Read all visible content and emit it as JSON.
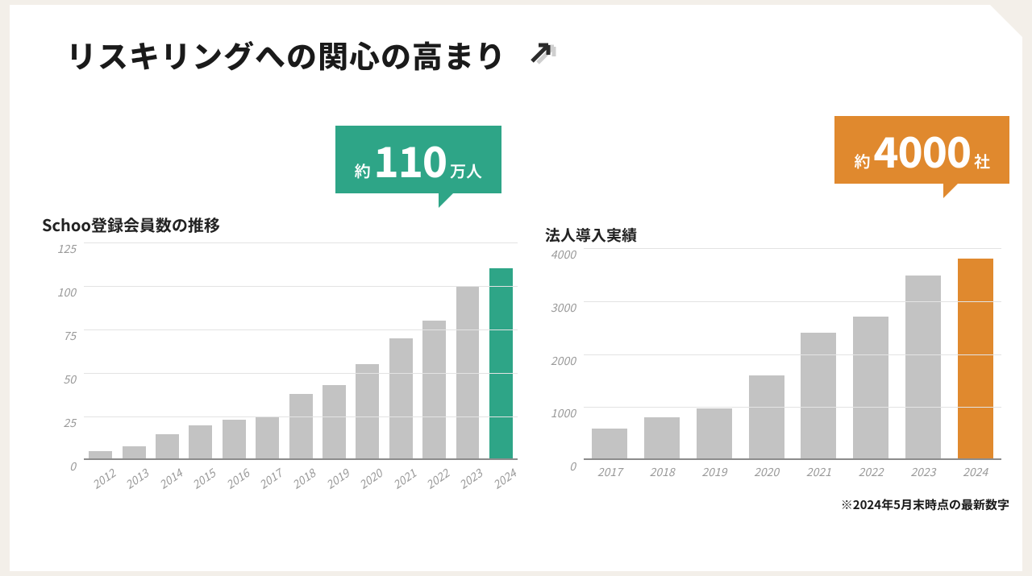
{
  "page": {
    "bg_outer": "#f3efe9",
    "bg_slide": "#ffffff"
  },
  "title": "リスキリングへの関心の高まり",
  "title_fontsize": 38,
  "title_color": "#1a1a1a",
  "arrow_icon": {
    "fg": "#2b2b2b",
    "shadow": "#cfcfcf"
  },
  "chart_left": {
    "type": "bar",
    "title": "Schoo登録会員数の推移",
    "title_fontsize": 20,
    "callout": {
      "prefix": "約",
      "value": "110",
      "suffix": "万人",
      "bg": "#2ea587",
      "text_color": "#ffffff",
      "value_fontsize": 52,
      "affix_fontsize": 20
    },
    "categories": [
      "2012",
      "2013",
      "2014",
      "2015",
      "2016",
      "2017",
      "2018",
      "2019",
      "2020",
      "2021",
      "2022",
      "2023",
      "2024"
    ],
    "values": [
      5,
      8,
      15,
      20,
      23,
      25,
      38,
      43,
      55,
      70,
      80,
      100,
      110
    ],
    "bar_color_default": "#c3c3c3",
    "bar_color_highlight": "#2ea587",
    "highlight_index": 12,
    "ylim": [
      0,
      125
    ],
    "yticks": [
      0,
      25,
      50,
      75,
      100,
      125
    ],
    "axis_label_color": "#9a9a9a",
    "axis_label_fontsize": 14,
    "grid_color": "#e3e3e3",
    "baseline_color": "#8c8c8c",
    "x_label_rotation_deg": -35,
    "bar_width_ratio": 0.7,
    "background_color": "#ffffff"
  },
  "chart_right": {
    "type": "bar",
    "title": "法人導入実績",
    "title_fontsize": 19,
    "callout": {
      "prefix": "約",
      "value": "4000",
      "suffix": "社",
      "bg": "#e0892e",
      "text_color": "#ffffff",
      "value_fontsize": 52,
      "affix_fontsize": 20
    },
    "categories": [
      "2017",
      "2018",
      "2019",
      "2020",
      "2021",
      "2022",
      "2023",
      "2024"
    ],
    "values": [
      600,
      800,
      980,
      1600,
      2400,
      2700,
      3480,
      3800
    ],
    "bar_color_default": "#c3c3c3",
    "bar_color_highlight": "#e0892e",
    "highlight_index": 7,
    "ylim": [
      0,
      4000
    ],
    "yticks": [
      0,
      1000,
      2000,
      3000,
      4000
    ],
    "axis_label_color": "#9a9a9a",
    "axis_label_fontsize": 14,
    "grid_color": "#e3e3e3",
    "baseline_color": "#8c8c8c",
    "x_label_rotation_deg": 0,
    "bar_width_ratio": 0.68,
    "background_color": "#ffffff"
  },
  "footnote": "※2024年5月末時点の最新数字",
  "footnote_fontsize": 15
}
